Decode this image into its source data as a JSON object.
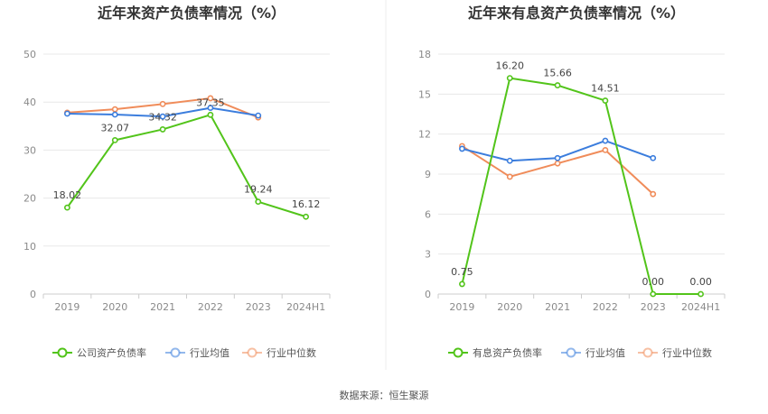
{
  "source": "数据来源：恒生聚源",
  "chart_data": [
    {
      "type": "line",
      "title": "近年来资产负债率情况（%）",
      "categories": [
        "2019",
        "2020",
        "2021",
        "2022",
        "2023",
        "2024H1"
      ],
      "ylim": [
        0,
        50
      ],
      "yticks": [
        "0",
        "10",
        "20",
        "30",
        "40",
        "50"
      ],
      "grid": true,
      "legend_position": "bottom",
      "series": [
        {
          "name": "公司资产负债率",
          "color": "#52c41a",
          "values": [
            18.02,
            32.07,
            34.32,
            37.35,
            19.24,
            16.12
          ],
          "labels": [
            "18.02",
            "32.07",
            "34.32",
            "37.35",
            "19.24",
            "16.12"
          ]
        },
        {
          "name": "行业均值",
          "color": "#3b7ddd",
          "values": [
            37.6,
            37.4,
            37.0,
            38.8,
            37.2,
            null
          ]
        },
        {
          "name": "行业中位数",
          "color": "#f08c5a",
          "values": [
            37.8,
            38.5,
            39.6,
            40.8,
            36.8,
            null
          ]
        }
      ]
    },
    {
      "type": "line",
      "title": "近年来有息资产负债率情况（%）",
      "categories": [
        "2019",
        "2020",
        "2021",
        "2022",
        "2023",
        "2024H1"
      ],
      "ylim": [
        0,
        18
      ],
      "yticks": [
        "0",
        "3",
        "6",
        "9",
        "12",
        "15",
        "18"
      ],
      "grid": true,
      "legend_position": "bottom",
      "series": [
        {
          "name": "有息资产负债率",
          "color": "#52c41a",
          "values": [
            0.75,
            16.2,
            15.66,
            14.51,
            0.0,
            0.0
          ],
          "labels": [
            "0.75",
            "16.20",
            "15.66",
            "14.51",
            "0.00",
            "0.00"
          ]
        },
        {
          "name": "行业均值",
          "color": "#3b7ddd",
          "values": [
            10.9,
            10.0,
            10.2,
            11.5,
            10.2,
            null
          ]
        },
        {
          "name": "行业中位数",
          "color": "#f08c5a",
          "values": [
            11.1,
            8.8,
            9.8,
            10.8,
            7.5,
            null
          ]
        }
      ]
    }
  ]
}
